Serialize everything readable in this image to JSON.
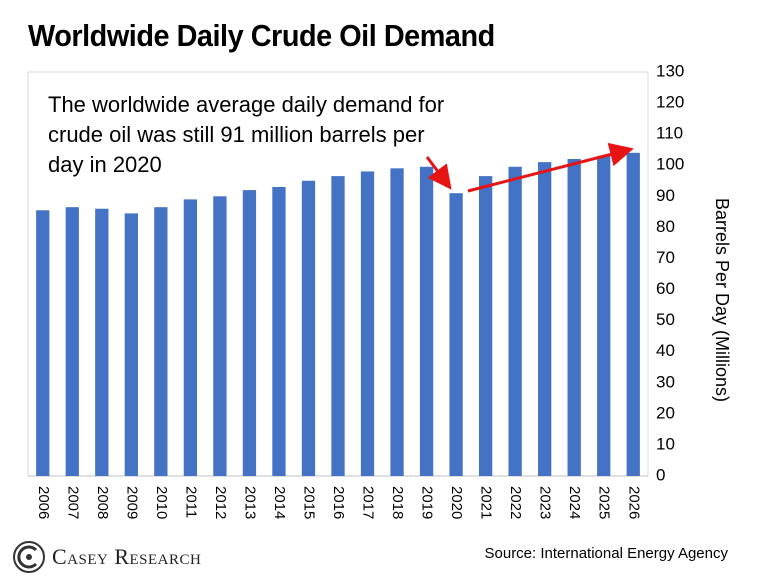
{
  "chart_data": {
    "type": "bar",
    "title": "Worldwide Daily Crude Oil Demand",
    "ylabel": "Barrels Per Day (Millions)",
    "xlabel": "",
    "ylim": [
      0,
      130
    ],
    "yticks": [
      0,
      10,
      20,
      30,
      40,
      50,
      60,
      70,
      80,
      90,
      100,
      110,
      120,
      130
    ],
    "y_axis_side": "right",
    "grid": false,
    "categories": [
      "2006",
      "2007",
      "2008",
      "2009",
      "2010",
      "2011",
      "2012",
      "2013",
      "2014",
      "2015",
      "2016",
      "2017",
      "2018",
      "2019",
      "2020",
      "2021",
      "2022",
      "2023",
      "2024",
      "2025",
      "2026"
    ],
    "values": [
      85.5,
      86.5,
      86,
      84.5,
      86.5,
      89,
      90,
      92,
      93,
      95,
      96.5,
      98,
      99,
      99.5,
      91,
      96.5,
      99.5,
      101,
      102,
      103,
      104
    ],
    "bar_color": "#4472C4",
    "annotation": "The worldwide average daily demand for crude oil was still 91 million barrels per day in 2020",
    "annotation_lines": [
      "The worldwide average daily demand for",
      "crude oil was still 91 million barrels per",
      "day in 2020"
    ],
    "arrow_color": "#E81313"
  },
  "footer": {
    "brand": "Casey Research",
    "source": "Source: International Energy Agency"
  }
}
